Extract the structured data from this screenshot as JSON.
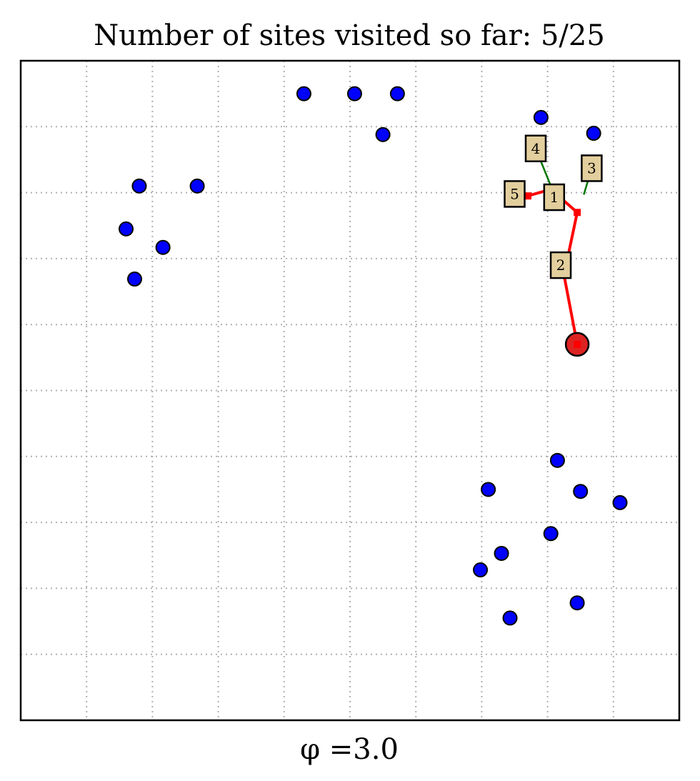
{
  "chart_data": {
    "type": "scatter",
    "title": "Number of sites visited so far: 5/25",
    "xlabel": "φ =3.0",
    "xlim": [
      0,
      10
    ],
    "ylim": [
      0,
      10
    ],
    "grid": true,
    "grid_ticks": [
      1,
      2,
      3,
      4,
      5,
      6,
      7,
      8,
      9
    ],
    "colors": {
      "site": "#0000ff",
      "current": "#dd2222",
      "path": "#ff0000",
      "link": "#007700",
      "box_fill": "#e3cf9d"
    },
    "sites": [
      [
        4.3,
        9.5
      ],
      [
        5.07,
        9.5
      ],
      [
        5.72,
        9.5
      ],
      [
        5.5,
        8.88
      ],
      [
        1.8,
        8.1
      ],
      [
        2.68,
        8.1
      ],
      [
        1.6,
        7.45
      ],
      [
        2.16,
        7.17
      ],
      [
        1.73,
        6.69
      ],
      [
        7.9,
        9.14
      ],
      [
        8.7,
        8.9
      ],
      [
        8.15,
        3.94
      ],
      [
        7.1,
        3.5
      ],
      [
        8.5,
        3.47
      ],
      [
        9.1,
        3.3
      ],
      [
        8.05,
        2.83
      ],
      [
        7.3,
        2.53
      ],
      [
        6.98,
        2.28
      ],
      [
        8.45,
        1.78
      ],
      [
        7.43,
        1.55
      ]
    ],
    "current_position": [
      8.45,
      5.7
    ],
    "path": [
      [
        8.45,
        5.7
      ],
      [
        8.25,
        6.75
      ],
      [
        8.45,
        7.7
      ],
      [
        8.05,
        8.05
      ],
      [
        7.7,
        7.95
      ]
    ],
    "visited": [
      {
        "label": "1",
        "site": [
          8.2,
          8.0
        ],
        "box": [
          8.1,
          7.93
        ]
      },
      {
        "label": "2",
        "site": [
          8.2,
          6.9
        ],
        "box": [
          8.2,
          6.9
        ]
      },
      {
        "label": "3",
        "site": [
          8.55,
          7.97
        ],
        "box": [
          8.67,
          8.37
        ]
      },
      {
        "label": "4",
        "site": [
          8.05,
          8.1
        ],
        "box": [
          7.82,
          8.67
        ]
      },
      {
        "label": "5",
        "site": [
          7.65,
          8.0
        ],
        "box": [
          7.5,
          7.98
        ]
      }
    ]
  }
}
